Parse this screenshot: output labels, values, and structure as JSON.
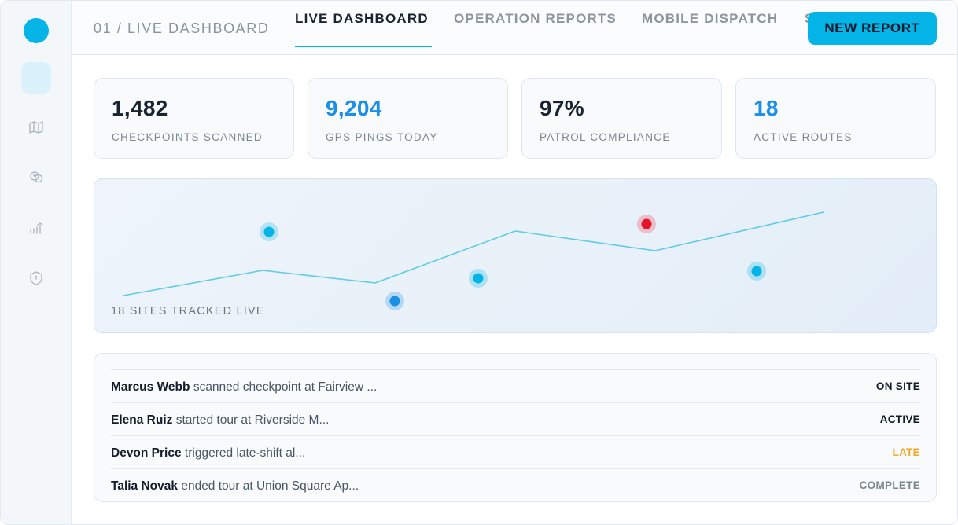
{
  "breadcrumb": "01 / LIVE DASHBOARD",
  "tabs": [
    {
      "label": "LIVE DASHBOARD",
      "active": true
    },
    {
      "label": "OPERATION REPORTS",
      "active": false
    },
    {
      "label": "MOBILE DISPATCH",
      "active": false
    },
    {
      "label": "S",
      "active": false
    }
  ],
  "new_report_label": "NEW REPORT",
  "sidebar": {
    "items": [
      {
        "name": "dashboard",
        "icon": "dashboard-icon",
        "active": true
      },
      {
        "name": "map",
        "icon": "map-icon",
        "active": false
      },
      {
        "name": "team",
        "icon": "team-icon",
        "active": false
      },
      {
        "name": "analytics",
        "icon": "trend-up-icon",
        "active": false
      },
      {
        "name": "security",
        "icon": "shield-icon",
        "active": false
      }
    ]
  },
  "stats": [
    {
      "value": "1,482",
      "label": "CHECKPOINTS SCANNED",
      "color": "#1a2332"
    },
    {
      "value": "9,204",
      "label": "GPS PINGS TODAY",
      "color": "#1a8fe8"
    },
    {
      "value": "97%",
      "label": "PATROL COMPLIANCE",
      "color": "#1a2332"
    },
    {
      "value": "18",
      "label": "ACTIVE ROUTES",
      "color": "#1a8fe8"
    }
  ],
  "map": {
    "caption": "18 SITES TRACKED LIVE",
    "colors": {
      "route": "#5fcbe6",
      "marker_cyan": "#04b4e6",
      "marker_blue": "#1a8fe8",
      "marker_red": "#e5132a"
    }
  },
  "feed": [
    {
      "name": "Marcus Webb",
      "action": "scanned checkpoint at Fairview ...",
      "status": "ON SITE",
      "status_color": "#131c29"
    },
    {
      "name": "Elena Ruiz",
      "action": "started tour at Riverside M...",
      "status": "ACTIVE",
      "status_color": "#131c29"
    },
    {
      "name": "Devon Price",
      "action": "triggered late-shift al...",
      "status": "LATE",
      "status_color": "#f5a623"
    },
    {
      "name": "Talia Novak",
      "action": "ended tour at Union Square Ap...",
      "status": "COMPLETE",
      "status_color": "#7c8794"
    }
  ]
}
